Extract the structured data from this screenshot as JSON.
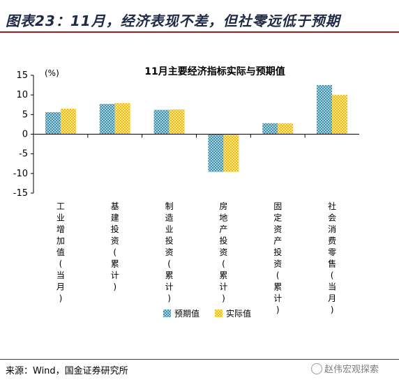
{
  "figure": {
    "title": "图表23：11月，经济表现不差，但社零远低于预期",
    "source": "来源：Wind，国金证券研究所",
    "watermark": "赵伟宏观探索"
  },
  "colors": {
    "expected": "#4a9ab0",
    "actual": "#f2c21a",
    "accent_rule": "#9b1c1c",
    "title_text": "#1f2a44"
  },
  "chart_data": {
    "type": "bar",
    "title": "11月主要经济指标实际与预期值",
    "unit": "(%)",
    "ylim": [
      -15,
      15
    ],
    "yticks": [
      15,
      10,
      5,
      0,
      -5,
      -10,
      -15
    ],
    "categories": [
      "工业增加值(当月)",
      "基建投资(累计)",
      "制造业投资(累计)",
      "房地产投资(累计)",
      "固定资产投资(累计)",
      "社会消费零售(当月)"
    ],
    "series": [
      {
        "name": "预期值",
        "values": [
          5.6,
          7.7,
          6.2,
          -9.6,
          2.8,
          12.5
        ]
      },
      {
        "name": "实际值",
        "values": [
          6.5,
          7.9,
          6.3,
          -9.6,
          2.8,
          10.0
        ]
      }
    ],
    "legend_position": "bottom-center",
    "grid": false
  }
}
